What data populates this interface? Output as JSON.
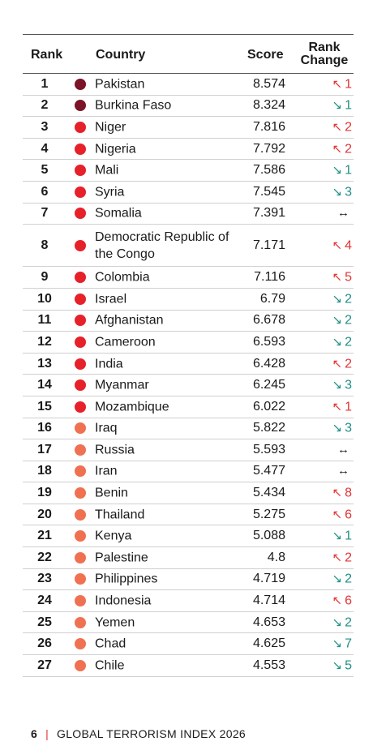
{
  "header": {
    "rank": "Rank",
    "country": "Country",
    "score": "Score",
    "change_line1": "Rank",
    "change_line2": "Change"
  },
  "colors": {
    "dark_red": "#7a1426",
    "red": "#e62129",
    "orange": "#ef7152",
    "up": "#e23434",
    "down": "#1f8f86"
  },
  "rows": [
    {
      "rank": "1",
      "country": "Pakistan",
      "score": "8.574",
      "dir": "up",
      "change": "1",
      "tier": "dark_red"
    },
    {
      "rank": "2",
      "country": "Burkina Faso",
      "score": "8.324",
      "dir": "down",
      "change": "1",
      "tier": "dark_red"
    },
    {
      "rank": "3",
      "country": "Niger",
      "score": "7.816",
      "dir": "up",
      "change": "2",
      "tier": "red"
    },
    {
      "rank": "4",
      "country": "Nigeria",
      "score": "7.792",
      "dir": "up",
      "change": "2",
      "tier": "red"
    },
    {
      "rank": "5",
      "country": "Mali",
      "score": "7.586",
      "dir": "down",
      "change": "1",
      "tier": "red"
    },
    {
      "rank": "6",
      "country": "Syria",
      "score": "7.545",
      "dir": "down",
      "change": "3",
      "tier": "red"
    },
    {
      "rank": "7",
      "country": "Somalia",
      "score": "7.391",
      "dir": "same",
      "change": "",
      "tier": "red"
    },
    {
      "rank": "8",
      "country": "Democratic Republic of the Congo",
      "score": "7.171",
      "dir": "up",
      "change": "4",
      "tier": "red",
      "tall": true
    },
    {
      "rank": "9",
      "country": "Colombia",
      "score": "7.116",
      "dir": "up",
      "change": "5",
      "tier": "red"
    },
    {
      "rank": "10",
      "country": "Israel",
      "score": "6.79",
      "dir": "down",
      "change": "2",
      "tier": "red"
    },
    {
      "rank": "11",
      "country": "Afghanistan",
      "score": "6.678",
      "dir": "down",
      "change": "2",
      "tier": "red"
    },
    {
      "rank": "12",
      "country": "Cameroon",
      "score": "6.593",
      "dir": "down",
      "change": "2",
      "tier": "red"
    },
    {
      "rank": "13",
      "country": "India",
      "score": "6.428",
      "dir": "up",
      "change": "2",
      "tier": "red"
    },
    {
      "rank": "14",
      "country": "Myanmar",
      "score": "6.245",
      "dir": "down",
      "change": "3",
      "tier": "red"
    },
    {
      "rank": "15",
      "country": "Mozambique",
      "score": "6.022",
      "dir": "up",
      "change": "1",
      "tier": "red"
    },
    {
      "rank": "16",
      "country": "Iraq",
      "score": "5.822",
      "dir": "down",
      "change": "3",
      "tier": "orange"
    },
    {
      "rank": "17",
      "country": "Russia",
      "score": "5.593",
      "dir": "same",
      "change": "",
      "tier": "orange"
    },
    {
      "rank": "18",
      "country": "Iran",
      "score": "5.477",
      "dir": "same",
      "change": "",
      "tier": "orange"
    },
    {
      "rank": "19",
      "country": "Benin",
      "score": "5.434",
      "dir": "up",
      "change": "8",
      "tier": "orange"
    },
    {
      "rank": "20",
      "country": "Thailand",
      "score": "5.275",
      "dir": "up",
      "change": "6",
      "tier": "orange"
    },
    {
      "rank": "21",
      "country": "Kenya",
      "score": "5.088",
      "dir": "down",
      "change": "1",
      "tier": "orange"
    },
    {
      "rank": "22",
      "country": "Palestine",
      "score": "4.8",
      "dir": "up",
      "change": "2",
      "tier": "orange"
    },
    {
      "rank": "23",
      "country": "Philippines",
      "score": "4.719",
      "dir": "down",
      "change": "2",
      "tier": "orange"
    },
    {
      "rank": "24",
      "country": "Indonesia",
      "score": "4.714",
      "dir": "up",
      "change": "6",
      "tier": "orange"
    },
    {
      "rank": "25",
      "country": "Yemen",
      "score": "4.653",
      "dir": "down",
      "change": "2",
      "tier": "orange"
    },
    {
      "rank": "26",
      "country": "Chad",
      "score": "4.625",
      "dir": "down",
      "change": "7",
      "tier": "orange"
    },
    {
      "rank": "27",
      "country": "Chile",
      "score": "4.553",
      "dir": "down",
      "change": "5",
      "tier": "orange"
    }
  ],
  "footer": {
    "page": "6",
    "title": "GLOBAL TERRORISM INDEX 2026"
  }
}
